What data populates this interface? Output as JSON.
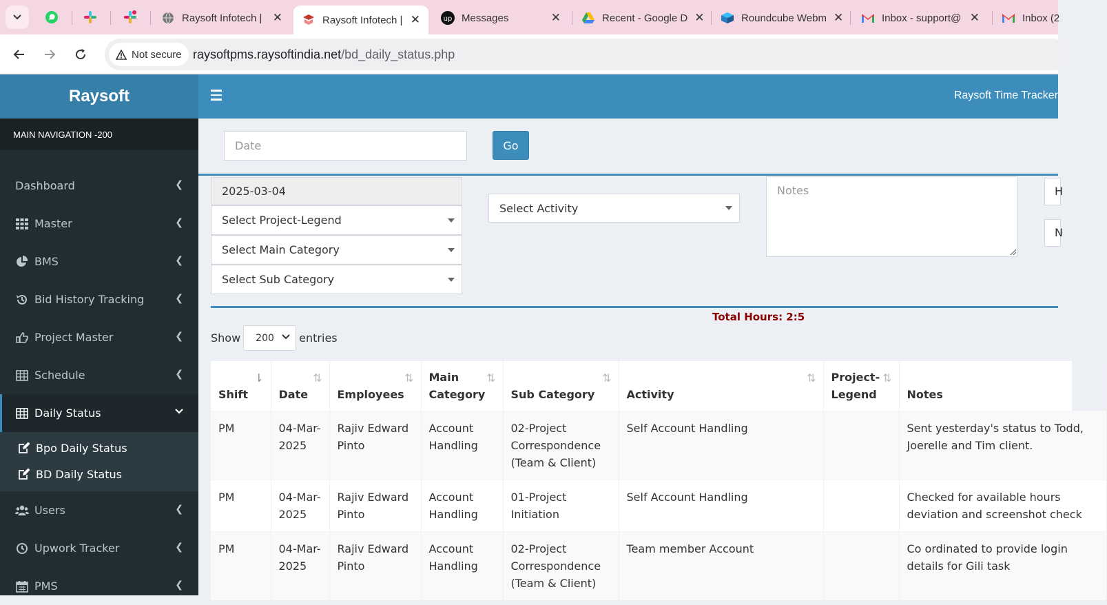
{
  "browser": {
    "tabs": [
      {
        "title": "Raysoft Infotech |",
        "active": false
      },
      {
        "title": "Raysoft Infotech |",
        "active": true
      },
      {
        "title": "Messages",
        "active": false
      },
      {
        "title": "Recent - Google D",
        "active": false
      },
      {
        "title": "Roundcube Webm",
        "active": false
      },
      {
        "title": "Inbox - support@",
        "active": false
      },
      {
        "title": "Inbox (2",
        "active": false
      }
    ],
    "security_label": "Not secure",
    "url_host": "raysoftpms.raysoftindia.net",
    "url_path": "/bd_daily_status.php"
  },
  "app": {
    "brand": "Raysoft",
    "title": "Raysoft Time Tracker"
  },
  "sidebar": {
    "header": "MAIN NAVIGATION -200",
    "items": [
      {
        "label": "Dashboard",
        "icon": "dashboard-icon"
      },
      {
        "label": "Master",
        "icon": "grid-icon"
      },
      {
        "label": "BMS",
        "icon": "pie-chart-icon"
      },
      {
        "label": "Bid History Tracking",
        "icon": "history-icon"
      },
      {
        "label": "Project Master",
        "icon": "hand-pointer-icon"
      },
      {
        "label": "Schedule",
        "icon": "table-icon"
      },
      {
        "label": "Daily Status",
        "icon": "table-icon"
      },
      {
        "label": "Users",
        "icon": "users-icon"
      },
      {
        "label": "Upwork Tracker",
        "icon": "clock-icon"
      },
      {
        "label": "PMS",
        "icon": "calendar-icon"
      }
    ],
    "subitems": [
      {
        "label": "Bpo Daily Status",
        "icon": "edit-icon"
      },
      {
        "label": "BD Daily Status",
        "icon": "edit-icon"
      }
    ]
  },
  "filter": {
    "date_placeholder": "Date",
    "go_label": "Go"
  },
  "form": {
    "date_value": "2025-03-04",
    "project_legend": "Select Project-Legend",
    "main_category": "Select Main Category",
    "sub_category": "Select Sub Category",
    "activity": "Select Activity",
    "notes_placeholder": "Notes",
    "edge_box_1": "H",
    "edge_box_2": "N"
  },
  "summary": {
    "total_hours": "Total Hours: 2:5"
  },
  "datatable": {
    "show_label": "Show",
    "entries_value": "200",
    "entries_label": "entries",
    "columns": [
      "Shift",
      "Date",
      "Employees",
      "Main Category",
      "Sub Category",
      "Activity",
      "Project-Legend",
      "Notes"
    ],
    "rows": [
      {
        "shift": "PM",
        "date": "04-Mar-2025",
        "employee": "Rajiv Edward Pinto",
        "main_category": "Account Handling",
        "sub_category": "02-Project Correspondence (Team & Client)",
        "activity": "Self Account Handling",
        "project_legend": "",
        "notes": "Sent yesterday's status to Todd, Joerelle and Tim client."
      },
      {
        "shift": "PM",
        "date": "04-Mar-2025",
        "employee": "Rajiv Edward Pinto",
        "main_category": "Account Handling",
        "sub_category": "01-Project Initiation",
        "activity": "Self Account Handling",
        "project_legend": "",
        "notes": "Checked for available hours deviation and screenshot check"
      },
      {
        "shift": "PM",
        "date": "04-Mar-2025",
        "employee": "Rajiv Edward Pinto",
        "main_category": "Account Handling",
        "sub_category": "02-Project Correspondence (Team & Client)",
        "activity": "Team member Account",
        "project_legend": "",
        "notes": "Co ordinated to provide login details for Gili task"
      }
    ]
  }
}
